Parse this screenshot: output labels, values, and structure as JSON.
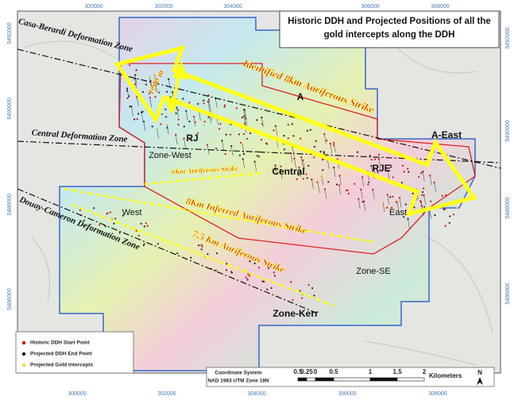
{
  "title": "Historic DDH and Projected Positions of all the gold intercepts along the DDH",
  "grid_labels": {
    "top": [
      "300000",
      "302000",
      "304000",
      "306000",
      "308000"
    ],
    "bottom": [
      "300000",
      "302000",
      "304000",
      "306000",
      "308000"
    ],
    "left": [
      "5492000",
      "5490000",
      "5488000",
      "5486000"
    ],
    "right": [
      "5492000",
      "5490000",
      "5488000",
      "5486000"
    ]
  },
  "deformation_zones": [
    "Casa-Berardi Deformation Zone",
    "Central Deformation Zone",
    "Douay-Cameron Deformation Zone"
  ],
  "strikes": [
    "Identified 8km Auriferous Strike",
    "1200 m",
    "6Km Auriferous Strike",
    "8Km Inferred Auriferous Strike",
    "7.5 Km Auriferous Strike"
  ],
  "areas": [
    "A",
    "A-East",
    "RJ",
    "Zone-West",
    "Central",
    "RJE",
    "West",
    "East",
    "Zone-SE",
    "Zone-Kerr"
  ],
  "legend": [
    "Historic DDH Start Point",
    "Projected DDH End Point",
    "Projected Gold Intercepts"
  ],
  "scale_bar": {
    "coordinate_system": "Coordinate System",
    "datum": "NAD 1983 UTM Zone 18N",
    "ticks": [
      "0.5",
      "0.25",
      "0",
      "0.5",
      "1",
      "1.5",
      "2"
    ],
    "unit": "Kilometers"
  },
  "north": "N"
}
